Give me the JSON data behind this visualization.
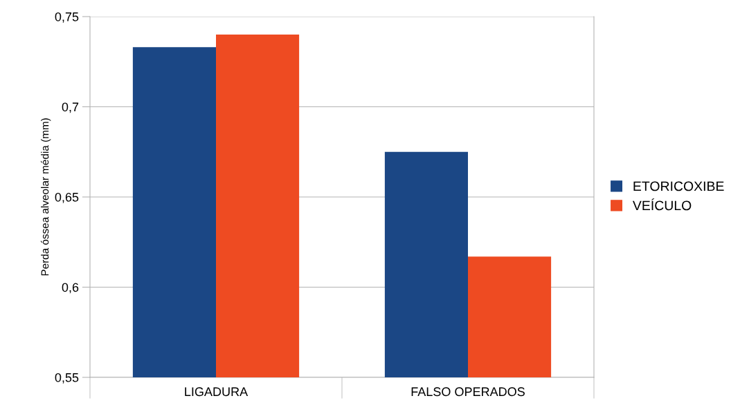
{
  "chart_data": {
    "type": "bar",
    "ylabel": "Perda óssea alveolar média (mm)",
    "categories": [
      "LIGADURA",
      "FALSO OPERADOS"
    ],
    "series": [
      {
        "name": "ETORICOXIBE",
        "color": "#1b4785",
        "values": [
          0.733,
          0.675
        ]
      },
      {
        "name": "VEÍCULO",
        "color": "#ee4b22",
        "values": [
          0.74,
          0.617
        ]
      }
    ],
    "ylim": [
      0.55,
      0.75
    ],
    "yticks": [
      {
        "value": 0.55,
        "label": "0,55"
      },
      {
        "value": 0.6,
        "label": "0,6"
      },
      {
        "value": 0.65,
        "label": "0,65"
      },
      {
        "value": 0.7,
        "label": "0,7"
      },
      {
        "value": 0.75,
        "label": "0,75"
      }
    ],
    "grid": "y",
    "legend": "right"
  }
}
